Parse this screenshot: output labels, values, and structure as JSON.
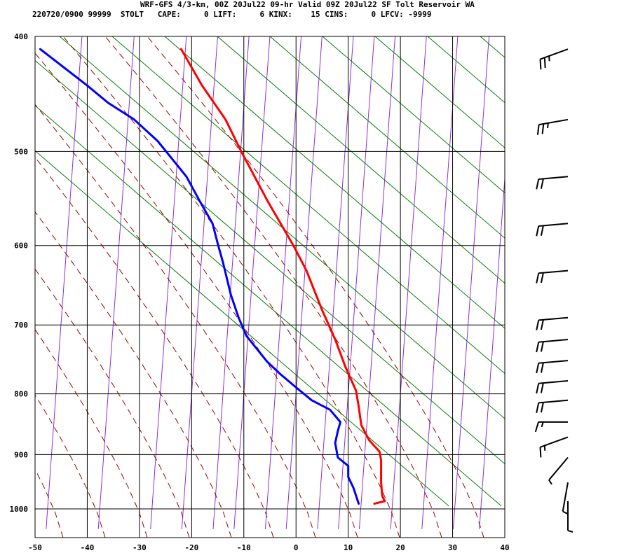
{
  "header": {
    "line1": "WRF-GFS 4/3-km, 00Z 20Jul22 09-hr Valid 09Z 20Jul22 SF Tolt Reservoir WA",
    "line2": "220720/0900 99999  STOLT   CAPE:     0 LIFT:     6 KINX:    15 CINS:     0 LFCV: -9999"
  },
  "chart_data": {
    "type": "line",
    "title": "WRF-GFS 4/3-km, 00Z 20Jul22 09-hr Valid 09Z 20Jul22 SF Tolt Reservoir WA",
    "xlabel": "",
    "ylabel": "",
    "x_scale": "skew-T temperature (°C)",
    "y_scale": "log pressure (hPa)",
    "xlim": [
      -50,
      40
    ],
    "ylim": [
      1040,
      400
    ],
    "x_ticks": [
      "-50",
      "-40",
      "-30",
      "-20",
      "-10",
      "0",
      "10",
      "20",
      "30",
      "40"
    ],
    "y_ticks": [
      "400",
      "500",
      "600",
      "700",
      "800",
      "900",
      "1000"
    ],
    "grid": true,
    "series": [
      {
        "color": "#ff0000",
        "points": [
          {
            "p": 990,
            "x": 15
          },
          {
            "p": 985,
            "x": 17
          },
          {
            "p": 975,
            "x": 16.5
          },
          {
            "p": 950,
            "x": 16.3
          },
          {
            "p": 910,
            "x": 16.3
          },
          {
            "p": 895,
            "x": 16
          },
          {
            "p": 875,
            "x": 14
          },
          {
            "p": 850,
            "x": 12.5
          },
          {
            "p": 820,
            "x": 12
          },
          {
            "p": 795,
            "x": 11.5
          },
          {
            "p": 760,
            "x": 9.5
          },
          {
            "p": 720,
            "x": 7.5
          },
          {
            "p": 680,
            "x": 5
          },
          {
            "p": 630,
            "x": 2
          },
          {
            "p": 600,
            "x": -0.5
          },
          {
            "p": 550,
            "x": -5.5
          },
          {
            "p": 500,
            "x": -10.5
          },
          {
            "p": 470,
            "x": -13.5
          },
          {
            "p": 440,
            "x": -18
          },
          {
            "p": 410,
            "x": -22
          }
        ]
      },
      {
        "color": "#0000ff",
        "points": [
          {
            "p": 990,
            "x": 12
          },
          {
            "p": 960,
            "x": 11
          },
          {
            "p": 940,
            "x": 10
          },
          {
            "p": 920,
            "x": 10
          },
          {
            "p": 905,
            "x": 8
          },
          {
            "p": 880,
            "x": 7.5
          },
          {
            "p": 860,
            "x": 8
          },
          {
            "p": 845,
            "x": 8.5
          },
          {
            "p": 825,
            "x": 6.5
          },
          {
            "p": 810,
            "x": 3
          },
          {
            "p": 790,
            "x": 0
          },
          {
            "p": 770,
            "x": -3
          },
          {
            "p": 752,
            "x": -5.5
          },
          {
            "p": 715,
            "x": -9.5
          },
          {
            "p": 690,
            "x": -11
          },
          {
            "p": 660,
            "x": -12.5
          },
          {
            "p": 620,
            "x": -14
          },
          {
            "p": 598,
            "x": -15
          },
          {
            "p": 575,
            "x": -16
          },
          {
            "p": 550,
            "x": -18.5
          },
          {
            "p": 525,
            "x": -21
          },
          {
            "p": 490,
            "x": -26.5
          },
          {
            "p": 470,
            "x": -31
          },
          {
            "p": 455,
            "x": -36
          },
          {
            "p": 440,
            "x": -40
          },
          {
            "p": 410,
            "x": -49
          }
        ]
      }
    ],
    "wind_barbs": [
      {
        "p": 410,
        "dir": 250,
        "kt": 25
      },
      {
        "p": 470,
        "dir": 260,
        "kt": 25
      },
      {
        "p": 525,
        "dir": 265,
        "kt": 20
      },
      {
        "p": 575,
        "dir": 265,
        "kt": 20
      },
      {
        "p": 630,
        "dir": 265,
        "kt": 20
      },
      {
        "p": 690,
        "dir": 265,
        "kt": 20
      },
      {
        "p": 720,
        "dir": 265,
        "kt": 20
      },
      {
        "p": 750,
        "dir": 265,
        "kt": 20
      },
      {
        "p": 780,
        "dir": 265,
        "kt": 20
      },
      {
        "p": 810,
        "dir": 265,
        "kt": 20
      },
      {
        "p": 845,
        "dir": 270,
        "kt": 15
      },
      {
        "p": 870,
        "dir": 250,
        "kt": 15
      },
      {
        "p": 905,
        "dir": 220,
        "kt": 5
      },
      {
        "p": 950,
        "dir": 190,
        "kt": 5
      },
      {
        "p": 985,
        "dir": 180,
        "kt": 5
      }
    ]
  }
}
